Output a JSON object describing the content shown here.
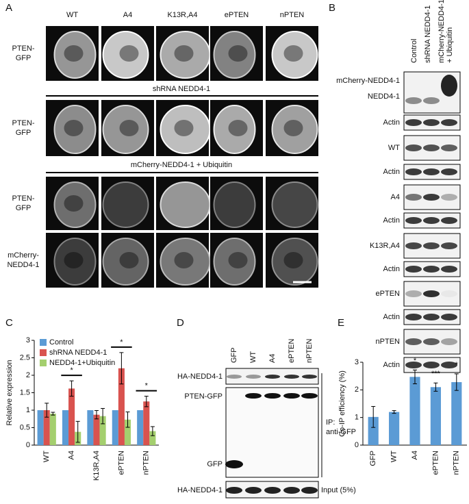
{
  "figure": {
    "panel_labels": [
      "A",
      "B",
      "C",
      "D",
      "E"
    ],
    "panel_a": {
      "columns": [
        "WT",
        "A4",
        "K13R,A4",
        "ePTEN",
        "nPTEN"
      ],
      "sections": [
        "shRNA NEDD4-1",
        "mCherry-NEDD4-1 + Ubiquitin"
      ],
      "row_labels": [
        [
          "PTEN-",
          "GFP"
        ],
        [
          "PTEN-",
          "GFP"
        ],
        [
          "PTEN-",
          "GFP"
        ],
        [
          "mCherry-",
          "NEDD4-1"
        ]
      ]
    },
    "panel_b": {
      "lanes": [
        [
          "Control"
        ],
        [
          "shRNA NEDD4-1"
        ],
        [
          "mCherry-NEDD4-1",
          "+ Ubiquitin"
        ]
      ],
      "blot_labels": [
        [
          "mCherry-NEDD4-1",
          "NEDD4-1"
        ],
        [
          "Actin"
        ],
        [
          "WT"
        ],
        [
          "Actin"
        ],
        [
          "A4"
        ],
        [
          "Actin"
        ],
        [
          "K13R,A4"
        ],
        [
          "Actin"
        ],
        [
          "ePTEN"
        ],
        [
          "Actin"
        ],
        [
          "nPTEN"
        ],
        [
          "Actin"
        ]
      ]
    },
    "panel_d": {
      "lanes": [
        "GFP",
        "WT",
        "A4",
        "ePTEN",
        "nPTEN"
      ],
      "top_label": "HA-NEDD4-1",
      "pten_label": "PTEN-GFP",
      "gfp_label": "GFP",
      "ip_label": [
        "IP:",
        "anti-GFP"
      ],
      "input_label": "HA-NEDD4-1",
      "input_note": "Input (5%)"
    }
  },
  "chart_data": [
    {
      "type": "bar",
      "y_label": "Relative expression",
      "categories": [
        "WT",
        "A4",
        "K13R,A4",
        "ePTEN",
        "nPTEN"
      ],
      "series": [
        {
          "name": "Control",
          "color": "#5b9bd5",
          "values": [
            1,
            1,
            1,
            1,
            1
          ]
        },
        {
          "name": "shRNA NEDD4-1",
          "color": "#d9534f",
          "values": [
            1.0,
            1.62,
            0.87,
            2.2,
            1.25
          ],
          "errors": [
            0.2,
            0.22,
            0.12,
            0.45,
            0.15
          ]
        },
        {
          "name": "NEDD4-1+Ubiquitin",
          "color": "#a4cf6e",
          "values": [
            0.9,
            0.38,
            0.83,
            0.73,
            0.4
          ],
          "errors": [
            0.04,
            0.3,
            0.22,
            0.22,
            0.13
          ]
        }
      ],
      "ylim": [
        0,
        3
      ],
      "yticks": [
        0,
        0.5,
        1,
        1.5,
        2,
        2.5,
        3
      ],
      "legend": "top-left",
      "annotations": [
        {
          "text": "*",
          "x": "A4"
        },
        {
          "text": "*",
          "x": "ePTEN"
        },
        {
          "text": "*",
          "x": "nPTEN"
        }
      ]
    },
    {
      "type": "bar",
      "y_label": "Co-IP efficiency (%)",
      "categories": [
        "GFP",
        "WT",
        "A4",
        "ePTEN",
        "nPTEN"
      ],
      "values": [
        1.02,
        1.2,
        2.47,
        2.1,
        2.28
      ],
      "errors": [
        0.38,
        0.05,
        0.25,
        0.15,
        0.3
      ],
      "color": "#5b9bd5",
      "ylim": [
        0,
        3
      ],
      "yticks": [
        0,
        1,
        2,
        3
      ],
      "annotations": [
        {
          "text": "*",
          "x": "A4"
        },
        {
          "text": "***",
          "x": "ePTEN"
        },
        {
          "text": "*",
          "x": "nPTEN"
        }
      ]
    }
  ]
}
